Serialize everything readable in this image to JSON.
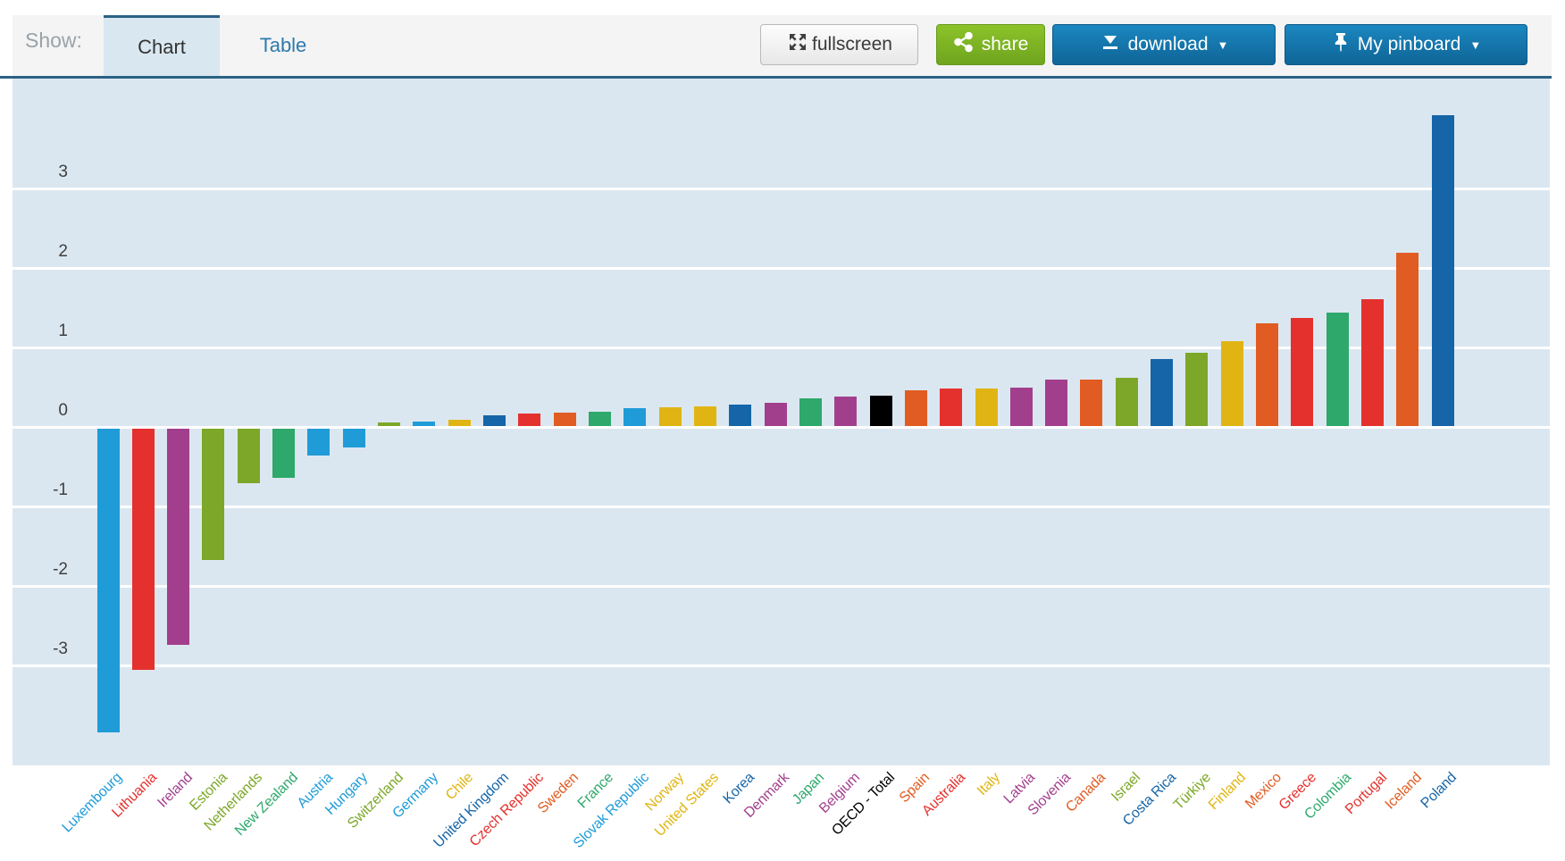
{
  "toolbar": {
    "show_label": "Show:",
    "tabs": [
      {
        "label": "Chart",
        "active": true
      },
      {
        "label": "Table",
        "active": false
      }
    ],
    "buttons": {
      "fullscreen": {
        "label": "fullscreen",
        "icon": "expand-arrows-icon"
      },
      "share": {
        "label": "share",
        "icon": "share-nodes-icon"
      },
      "download": {
        "label": "download",
        "icon": "download-arrow-icon",
        "caret": "▼"
      },
      "pinboard": {
        "label": "My pinboard",
        "icon": "pushpin-icon",
        "caret": "▼"
      }
    }
  },
  "colors": {
    "toolbar_accent": "#2a6285",
    "active_tab_bg": "#d9e7f0",
    "tab_link_text": "#2d7aad",
    "share_green": "#7ab51f",
    "button_blue": "#1272a8",
    "plot_background": "#dbe7f0",
    "gridline": "#ffffff",
    "tick_text": "#3f3f3f"
  },
  "chart_data": {
    "type": "bar",
    "title": "",
    "xlabel": "",
    "ylabel": "",
    "grid": true,
    "legend": false,
    "sorted": "ascending",
    "ylim": [
      -4.3,
      4.4
    ],
    "y_ticks": [
      3,
      2,
      1,
      0,
      -1,
      -2,
      -3
    ],
    "y_tick_labels": [
      "3",
      "2",
      "1",
      "0",
      "-1",
      "-2",
      "-3"
    ],
    "categories": [
      "Luxembourg",
      "Lithuania",
      "Ireland",
      "Estonia",
      "Netherlands",
      "New Zealand",
      "Austria",
      "Hungary",
      "Switzerland",
      "Germany",
      "Chile",
      "United Kingdom",
      "Czech Republic",
      "Sweden",
      "France",
      "Slovak Republic",
      "Norway",
      "United States",
      "Korea",
      "Denmark",
      "Japan",
      "Belgium",
      "OECD - Total",
      "Spain",
      "Australia",
      "Italy",
      "Latvia",
      "Slovenia",
      "Canada",
      "Israel",
      "Costa Rica",
      "Türkiye",
      "Finland",
      "Mexico",
      "Greece",
      "Colombia",
      "Portugal",
      "Iceland",
      "Poland"
    ],
    "values": [
      -3.82,
      -3.03,
      -2.72,
      -1.65,
      -0.68,
      -0.62,
      -0.34,
      -0.24,
      0.04,
      0.06,
      0.08,
      0.13,
      0.16,
      0.17,
      0.18,
      0.22,
      0.24,
      0.25,
      0.27,
      0.29,
      0.35,
      0.37,
      0.38,
      0.45,
      0.47,
      0.47,
      0.48,
      0.58,
      0.58,
      0.61,
      0.84,
      0.92,
      1.07,
      1.29,
      1.36,
      1.43,
      1.6,
      2.18,
      3.91
    ],
    "bar_colors": [
      "#1f9bd7",
      "#e4312d",
      "#a23f8d",
      "#7ca728",
      "#7ca728",
      "#2ea86b",
      "#1f9bd7",
      "#1f9bd7",
      "#7ca728",
      "#1f9bd7",
      "#e0b513",
      "#1565a8",
      "#e4312d",
      "#e05c22",
      "#2ea86b",
      "#1f9bd7",
      "#e0b513",
      "#e0b513",
      "#1565a8",
      "#a23f8d",
      "#2ea86b",
      "#a23f8d",
      "#000000",
      "#e05c22",
      "#e4312d",
      "#e0b513",
      "#a23f8d",
      "#a23f8d",
      "#e05c22",
      "#7ca728",
      "#1565a8",
      "#7ca728",
      "#e0b513",
      "#e05c22",
      "#e4312d",
      "#2ea86b",
      "#e4312d",
      "#e05c22",
      "#1565a8"
    ]
  }
}
